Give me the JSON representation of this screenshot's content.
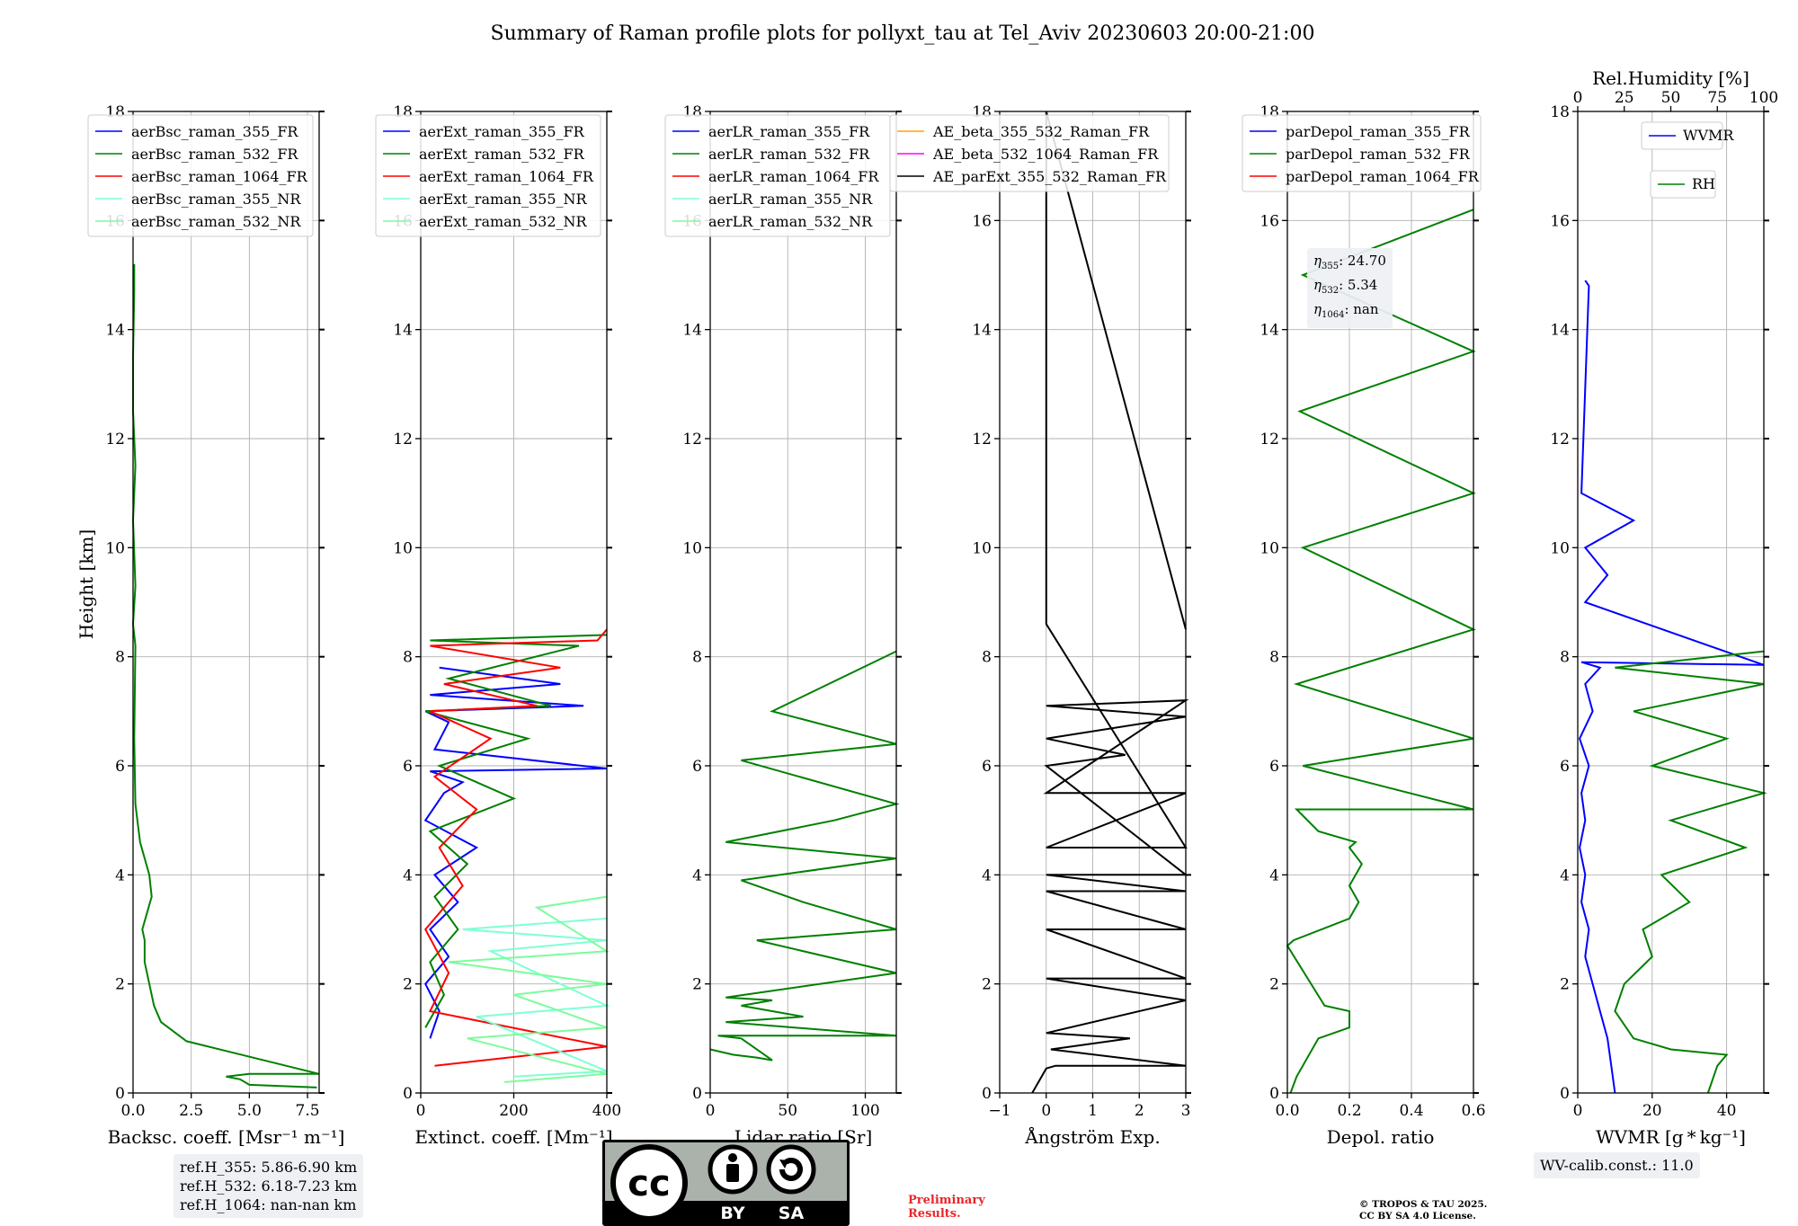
{
  "title": "Summary of Raman profile plots for pollyxt_tau at Tel_Aviv 20230603 20:00-21:00",
  "y_axis_label": "Height [km]",
  "colors": {
    "355_FR": "#0000ff",
    "532_FR": "#008000",
    "1064_FR": "#ff0000",
    "355_NR": "#7fffd4",
    "532_NR": "#7cfc9c",
    "black": "#000000",
    "orange": "#ffa500",
    "magenta": "#ff00ff",
    "grid": "#b0b0b0"
  },
  "chart_data": [
    {
      "type": "line",
      "panel": "backscatter",
      "xlabel": "Backsc. coeff. [Msr⁻¹ m⁻¹]",
      "xlim": [
        0,
        8
      ],
      "ylim": [
        0,
        18
      ],
      "x_ticks": [
        "0.0",
        "2.5",
        "5.0",
        "7.5"
      ],
      "y_ticks": [
        "0",
        "2",
        "4",
        "6",
        "8",
        "10",
        "12",
        "14",
        "16",
        "18"
      ],
      "legend": [
        "aerBsc_raman_355_FR",
        "aerBsc_raman_532_FR",
        "aerBsc_raman_1064_FR",
        "aerBsc_raman_355_NR",
        "aerBsc_raman_532_NR"
      ],
      "series": [
        {
          "name": "aerBsc_raman_532_FR",
          "color": "532_FR",
          "x": [
            7.9,
            5.0,
            4.6,
            4.0,
            5.0,
            8.0,
            2.3,
            1.2,
            0.9,
            0.7,
            0.5,
            0.5,
            0.4,
            0.6,
            0.8,
            0.7,
            0.3,
            0.1,
            0.05,
            0.1,
            0.0,
            0.1,
            0.0,
            0.1,
            0.0,
            0.0,
            0.05,
            0.05
          ],
          "y": [
            0.1,
            0.15,
            0.25,
            0.3,
            0.35,
            0.35,
            0.95,
            1.3,
            1.6,
            2.0,
            2.4,
            2.8,
            3.0,
            3.3,
            3.6,
            4.0,
            4.6,
            5.3,
            6.5,
            8.2,
            8.6,
            9.3,
            10.5,
            11.5,
            12.5,
            13.5,
            14.7,
            15.2
          ]
        }
      ],
      "annotation_box": [
        "ref.H_355: 5.86-6.90 km",
        "ref.H_532: 6.18-7.23 km",
        "ref.H_1064: nan-nan km"
      ]
    },
    {
      "type": "line",
      "panel": "extinction",
      "xlabel": "Extinct. coeff. [Mm⁻¹]",
      "xlim": [
        0,
        400
      ],
      "ylim": [
        0,
        18
      ],
      "x_ticks": [
        "0",
        "200",
        "400"
      ],
      "legend": [
        "aerExt_raman_355_FR",
        "aerExt_raman_532_FR",
        "aerExt_raman_1064_FR",
        "aerExt_raman_355_NR",
        "aerExt_raman_532_NR"
      ],
      "series": [
        {
          "name": "aerExt_raman_355_FR",
          "color": "355_FR",
          "x": [
            20,
            40,
            10,
            60,
            20,
            80,
            30,
            120,
            10,
            50,
            90,
            20,
            400,
            30,
            60,
            10,
            350,
            20,
            300,
            40
          ],
          "y": [
            1.0,
            1.5,
            2.0,
            2.5,
            3.0,
            3.5,
            4.0,
            4.5,
            5.0,
            5.5,
            5.7,
            5.9,
            5.95,
            6.3,
            6.8,
            7.0,
            7.1,
            7.3,
            7.5,
            7.8
          ]
        },
        {
          "name": "aerExt_raman_532_FR",
          "color": "532_FR",
          "x": [
            10,
            50,
            20,
            80,
            30,
            100,
            20,
            200,
            40,
            230,
            10,
            280,
            60,
            340,
            20,
            400
          ],
          "y": [
            1.2,
            1.8,
            2.4,
            3.0,
            3.6,
            4.2,
            4.8,
            5.4,
            6.0,
            6.5,
            7.0,
            7.1,
            7.6,
            8.2,
            8.3,
            8.4
          ]
        },
        {
          "name": "aerExt_raman_1064_FR",
          "color": "1064_FR",
          "x": [
            30,
            400,
            20,
            60,
            10,
            90,
            40,
            120,
            30,
            150,
            20,
            250,
            50,
            300,
            20,
            380,
            400
          ],
          "y": [
            0.5,
            0.85,
            1.5,
            2.2,
            3.0,
            3.8,
            4.5,
            5.2,
            5.8,
            6.5,
            7.0,
            7.1,
            7.5,
            7.8,
            8.2,
            8.3,
            8.5
          ]
        },
        {
          "name": "aerExt_raman_355_NR",
          "color": "355_NR",
          "x": [
            200,
            400,
            120,
            400,
            150,
            400,
            90,
            400
          ],
          "y": [
            0.3,
            0.4,
            1.4,
            1.6,
            2.6,
            2.8,
            3.0,
            3.2
          ]
        },
        {
          "name": "aerExt_raman_532_NR",
          "color": "532_NR",
          "x": [
            180,
            400,
            100,
            400,
            200,
            400,
            60,
            400,
            250,
            400
          ],
          "y": [
            0.2,
            0.35,
            1.0,
            1.2,
            1.8,
            2.0,
            2.4,
            2.6,
            3.4,
            3.6
          ]
        }
      ]
    },
    {
      "type": "line",
      "panel": "lidar_ratio",
      "xlabel": "Lidar ratio [Sr]",
      "xlim": [
        0,
        120
      ],
      "ylim": [
        0,
        18
      ],
      "x_ticks": [
        "0",
        "50",
        "100"
      ],
      "legend": [
        "aerLR_raman_355_FR",
        "aerLR_raman_532_FR",
        "aerLR_raman_1064_FR",
        "aerLR_raman_355_NR",
        "aerLR_raman_532_NR"
      ],
      "series": [
        {
          "name": "aerLR_raman_532_FR",
          "color": "532_FR",
          "x": [
            0,
            15,
            30,
            40,
            20,
            5,
            120,
            10,
            60,
            20,
            40,
            10,
            120,
            30,
            120,
            60,
            20,
            120,
            10,
            80,
            120,
            20,
            120,
            40,
            120
          ],
          "y": [
            0.8,
            0.7,
            0.65,
            0.6,
            1.0,
            1.05,
            1.05,
            1.3,
            1.4,
            1.6,
            1.7,
            1.75,
            2.2,
            2.8,
            3.0,
            3.5,
            3.9,
            4.3,
            4.6,
            5.0,
            5.3,
            6.1,
            6.4,
            7.0,
            8.1
          ]
        }
      ]
    },
    {
      "type": "line",
      "panel": "angstrom",
      "xlabel": "Ångström Exp.",
      "xlim": [
        -1,
        3
      ],
      "ylim": [
        0,
        18
      ],
      "x_ticks": [
        "−1",
        "0",
        "1",
        "2",
        "3"
      ],
      "legend": [
        "AE_beta_355_532_Raman_FR",
        "AE_beta_532_1064_Raman_FR",
        "AE_parExt_355_532_Raman_FR"
      ],
      "series": [
        {
          "name": "AE_parExt_355_532_Raman_FR",
          "color": "black",
          "x": [
            -0.3,
            0,
            0.2,
            3,
            0.1,
            1.8,
            0,
            3,
            0,
            3,
            0,
            3,
            0,
            3,
            0,
            3,
            0,
            1.7,
            0,
            3,
            0,
            3,
            0,
            3,
            0,
            3,
            0,
            0,
            3
          ],
          "y": [
            0.0,
            0.45,
            0.5,
            0.5,
            0.8,
            1.0,
            1.1,
            1.7,
            2.1,
            2.1,
            3.0,
            3.0,
            3.7,
            3.7,
            4.0,
            4.0,
            6.0,
            6.2,
            6.5,
            6.9,
            7.1,
            7.2,
            5.5,
            5.5,
            4.5,
            4.5,
            8.6,
            18,
            8.5
          ]
        }
      ]
    },
    {
      "type": "line",
      "panel": "depolarization",
      "xlabel": "Depol. ratio",
      "xlim": [
        0,
        0.6
      ],
      "ylim": [
        0,
        18
      ],
      "x_ticks": [
        "0.0",
        "0.2",
        "0.4",
        "0.6"
      ],
      "legend": [
        "parDepol_raman_355_FR",
        "parDepol_raman_532_FR",
        "parDepol_raman_1064_FR"
      ],
      "series": [
        {
          "name": "parDepol_raman_532_FR",
          "color": "532_FR",
          "x": [
            0.01,
            0.03,
            0.1,
            0.2,
            0.2,
            0.12,
            0.0,
            0.02,
            0.2,
            0.23,
            0.2,
            0.24,
            0.2,
            0.22,
            0.1,
            0.03,
            0.6,
            0.05,
            0.6,
            0.03,
            0.6,
            0.05,
            0.6,
            0.04,
            0.6,
            0.05,
            0.6
          ],
          "y": [
            0.0,
            0.3,
            1.0,
            1.2,
            1.5,
            1.6,
            2.7,
            2.8,
            3.2,
            3.5,
            3.8,
            4.2,
            4.5,
            4.6,
            4.8,
            5.2,
            5.2,
            6.0,
            6.5,
            7.5,
            8.5,
            10.0,
            11.0,
            12.5,
            13.6,
            15.0,
            16.2
          ]
        }
      ],
      "eta_box": [
        {
          "symbol": "η",
          "sub": "355",
          "value": ": 24.70"
        },
        {
          "symbol": "η",
          "sub": "532",
          "value": ": 5.34"
        },
        {
          "symbol": "η",
          "sub": "1064",
          "value": ": nan"
        }
      ]
    },
    {
      "type": "line",
      "panel": "water_vapor",
      "xlabel": "WVMR [g * kg⁻¹]",
      "xlim": [
        0,
        50
      ],
      "ylim": [
        0,
        18
      ],
      "x_ticks": [
        "0",
        "20",
        "40"
      ],
      "top_axis_label": "Rel.Humidity [%]",
      "top_xlim": [
        0,
        100
      ],
      "top_ticks": [
        "0",
        "25",
        "50",
        "75",
        "100"
      ],
      "legend": [
        "WVMR",
        "RH"
      ],
      "series": [
        {
          "name": "WVMR",
          "color": "355_FR",
          "axis": "bottom",
          "x": [
            10,
            9,
            8,
            6,
            4,
            2,
            3,
            1,
            2,
            0.5,
            2,
            1,
            3,
            0.5,
            4,
            2,
            6,
            1,
            50,
            2,
            8,
            2,
            15,
            1,
            3,
            2
          ],
          "y": [
            0.0,
            0.5,
            1.0,
            1.5,
            2.0,
            2.5,
            3.0,
            3.5,
            4.0,
            4.5,
            5.0,
            5.5,
            6.0,
            6.5,
            7.0,
            7.5,
            7.8,
            7.9,
            7.85,
            9.0,
            9.5,
            10.0,
            10.5,
            11.0,
            14.8,
            14.9
          ]
        },
        {
          "name": "RH",
          "color": "532_FR",
          "axis": "top",
          "x": [
            70,
            75,
            80,
            50,
            30,
            20,
            25,
            40,
            35,
            60,
            45,
            90,
            50,
            100,
            40,
            80,
            30,
            100,
            20,
            100
          ],
          "y": [
            0.0,
            0.5,
            0.7,
            0.8,
            1.0,
            1.5,
            2.0,
            2.5,
            3.0,
            3.5,
            4.0,
            4.5,
            5.0,
            5.5,
            6.0,
            6.5,
            7.0,
            7.5,
            7.8,
            8.1
          ]
        }
      ],
      "annotation_box": [
        "WV-calib.const.: 11.0"
      ]
    }
  ],
  "footer": {
    "preliminary": [
      "Preliminary",
      "Results."
    ],
    "copyright": [
      "© TROPOS & TAU 2025.",
      "CC BY SA 4.0 License."
    ],
    "license_badge": {
      "left": "BY",
      "right": "SA",
      "logo_text": "cc"
    }
  }
}
